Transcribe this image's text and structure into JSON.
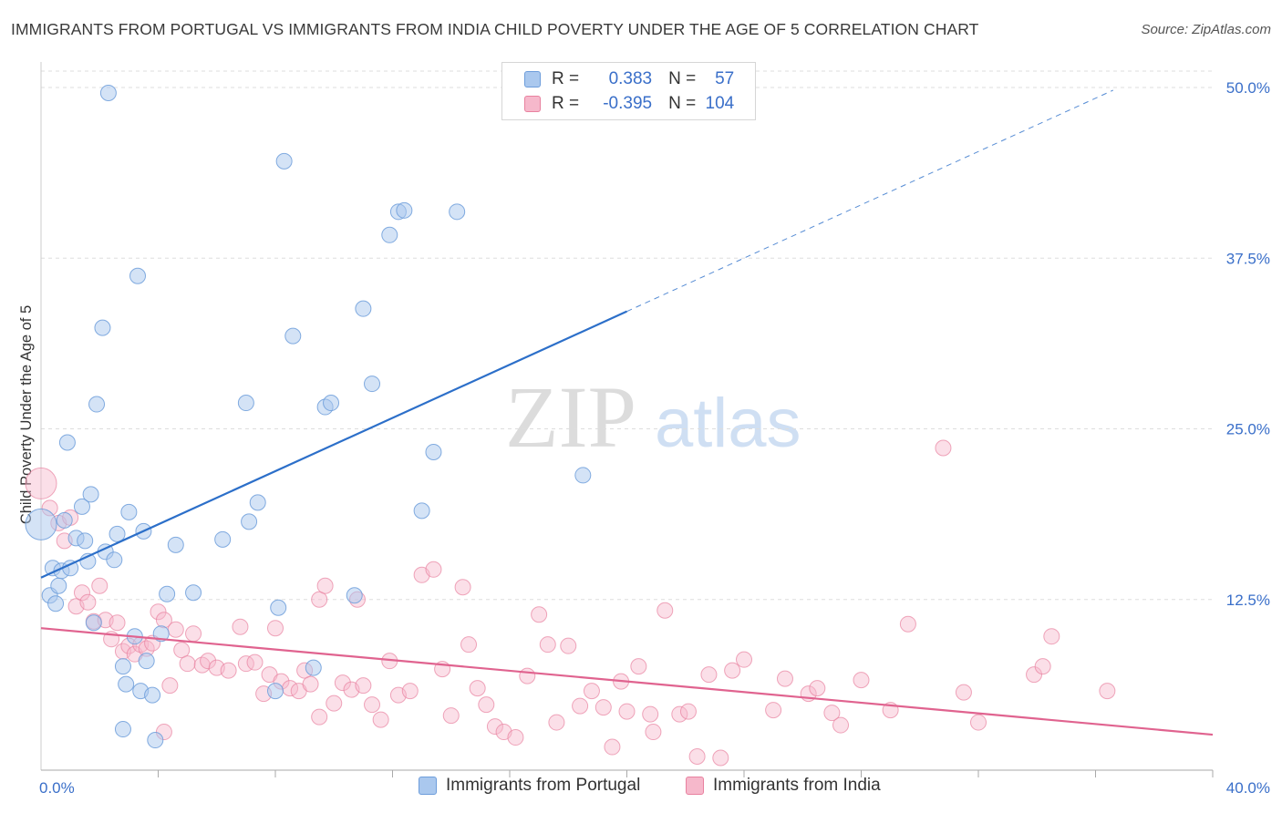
{
  "title": "IMMIGRANTS FROM PORTUGAL VS IMMIGRANTS FROM INDIA CHILD POVERTY UNDER THE AGE OF 5 CORRELATION CHART",
  "source": "Source: ZipAtlas.com",
  "watermark": {
    "zip": "ZIP",
    "atlas": "atlas"
  },
  "legend": {
    "r_label": "R =",
    "n_label": "N =",
    "portugal": {
      "r": "0.383",
      "n": "57"
    },
    "india": {
      "r": "-0.395",
      "n": "104"
    }
  },
  "colors": {
    "portugal_fill": "#aac8ee",
    "portugal_stroke": "#6d9ddb",
    "portugal_line": "#2c6fc9",
    "india_fill": "#f6b8cb",
    "india_stroke": "#e8819f",
    "india_line": "#e0638f",
    "axis_text": "#3a6fc9",
    "grid": "#dddddd"
  },
  "chart_data": {
    "type": "scatter",
    "title": "IMMIGRANTS FROM PORTUGAL VS IMMIGRANTS FROM INDIA CHILD POVERTY UNDER THE AGE OF 5 CORRELATION CHART",
    "xlabel": "",
    "ylabel": "Child Poverty Under the Age of 5",
    "xlim": [
      0,
      40
    ],
    "ylim": [
      0,
      50
    ],
    "x_tick_labels": [
      "0.0%",
      "40.0%"
    ],
    "y_ticks": [
      12.5,
      25.0,
      37.5,
      50.0
    ],
    "y_tick_labels": [
      "12.5%",
      "25.0%",
      "37.5%",
      "50.0%"
    ],
    "grid": true,
    "legend_position": "top-center",
    "series": [
      {
        "name": "Immigrants from Portugal",
        "trend": {
          "x0": 0.0,
          "y0": 14.1,
          "x1": 20.0,
          "y1": 33.6,
          "dashed_to_x": 36.6,
          "dashed_to_y": 49.8
        },
        "points": [
          [
            0.0,
            18.0
          ],
          [
            0.3,
            12.8
          ],
          [
            0.4,
            14.8
          ],
          [
            0.5,
            12.2
          ],
          [
            0.6,
            13.5
          ],
          [
            0.7,
            14.6
          ],
          [
            0.8,
            18.3
          ],
          [
            0.9,
            24.0
          ],
          [
            1.0,
            14.8
          ],
          [
            1.2,
            17.0
          ],
          [
            1.4,
            19.3
          ],
          [
            1.5,
            16.8
          ],
          [
            1.6,
            15.3
          ],
          [
            1.7,
            20.2
          ],
          [
            1.8,
            10.8
          ],
          [
            1.9,
            26.8
          ],
          [
            2.1,
            32.4
          ],
          [
            2.2,
            16.0
          ],
          [
            2.3,
            49.6
          ],
          [
            2.5,
            15.4
          ],
          [
            2.6,
            17.3
          ],
          [
            2.8,
            7.6
          ],
          [
            2.9,
            6.3
          ],
          [
            3.0,
            18.9
          ],
          [
            3.2,
            9.8
          ],
          [
            3.4,
            5.8
          ],
          [
            3.5,
            17.5
          ],
          [
            3.6,
            8.0
          ],
          [
            3.8,
            5.5
          ],
          [
            4.1,
            10.0
          ],
          [
            4.3,
            12.9
          ],
          [
            4.6,
            16.5
          ],
          [
            5.2,
            13.0
          ],
          [
            6.2,
            16.9
          ],
          [
            7.0,
            26.9
          ],
          [
            7.1,
            18.2
          ],
          [
            7.4,
            19.6
          ],
          [
            8.1,
            11.9
          ],
          [
            8.3,
            44.6
          ],
          [
            8.6,
            31.8
          ],
          [
            9.3,
            7.5
          ],
          [
            9.7,
            26.6
          ],
          [
            9.9,
            26.9
          ],
          [
            10.7,
            12.8
          ],
          [
            11.0,
            33.8
          ],
          [
            11.3,
            28.3
          ],
          [
            11.9,
            39.2
          ],
          [
            12.2,
            40.9
          ],
          [
            12.4,
            41.0
          ],
          [
            13.0,
            19.0
          ],
          [
            13.4,
            23.3
          ],
          [
            14.2,
            40.9
          ],
          [
            18.5,
            21.6
          ],
          [
            3.3,
            36.2
          ],
          [
            2.8,
            3.0
          ],
          [
            3.9,
            2.2
          ],
          [
            8.0,
            5.8
          ]
        ]
      },
      {
        "name": "Immigrants from India",
        "trend": {
          "x0": 0.0,
          "y0": 10.4,
          "x1": 40.0,
          "y1": 2.6
        },
        "points": [
          [
            0.0,
            21.0
          ],
          [
            0.3,
            19.2
          ],
          [
            0.6,
            18.1
          ],
          [
            0.8,
            16.8
          ],
          [
            1.0,
            18.5
          ],
          [
            1.2,
            12.0
          ],
          [
            1.4,
            13.0
          ],
          [
            1.6,
            12.3
          ],
          [
            1.8,
            10.9
          ],
          [
            2.0,
            13.5
          ],
          [
            2.2,
            11.0
          ],
          [
            2.4,
            9.6
          ],
          [
            2.6,
            10.8
          ],
          [
            2.8,
            8.7
          ],
          [
            3.0,
            9.1
          ],
          [
            3.2,
            8.5
          ],
          [
            3.4,
            9.2
          ],
          [
            3.6,
            8.9
          ],
          [
            3.8,
            9.3
          ],
          [
            4.0,
            11.6
          ],
          [
            4.2,
            11.0
          ],
          [
            4.4,
            6.2
          ],
          [
            4.6,
            10.3
          ],
          [
            4.8,
            8.8
          ],
          [
            5.0,
            7.8
          ],
          [
            5.2,
            10.0
          ],
          [
            5.5,
            7.7
          ],
          [
            5.7,
            8.0
          ],
          [
            6.0,
            7.5
          ],
          [
            6.4,
            7.3
          ],
          [
            6.8,
            10.5
          ],
          [
            7.0,
            7.8
          ],
          [
            7.3,
            7.9
          ],
          [
            7.6,
            5.6
          ],
          [
            7.8,
            7.0
          ],
          [
            8.0,
            10.4
          ],
          [
            8.2,
            6.5
          ],
          [
            8.5,
            6.0
          ],
          [
            8.8,
            5.8
          ],
          [
            9.0,
            7.3
          ],
          [
            9.2,
            6.3
          ],
          [
            9.5,
            12.5
          ],
          [
            9.7,
            13.5
          ],
          [
            10.0,
            4.9
          ],
          [
            10.3,
            6.4
          ],
          [
            10.6,
            5.9
          ],
          [
            10.8,
            12.5
          ],
          [
            11.0,
            6.2
          ],
          [
            11.3,
            4.8
          ],
          [
            11.6,
            3.7
          ],
          [
            11.9,
            8.0
          ],
          [
            12.2,
            5.5
          ],
          [
            12.6,
            5.8
          ],
          [
            13.0,
            14.3
          ],
          [
            13.4,
            14.7
          ],
          [
            13.7,
            7.4
          ],
          [
            14.0,
            4.0
          ],
          [
            14.4,
            13.4
          ],
          [
            14.6,
            9.2
          ],
          [
            14.9,
            6.0
          ],
          [
            15.2,
            4.8
          ],
          [
            15.5,
            3.2
          ],
          [
            15.8,
            2.8
          ],
          [
            16.2,
            2.4
          ],
          [
            16.6,
            6.9
          ],
          [
            17.0,
            11.4
          ],
          [
            17.3,
            9.2
          ],
          [
            17.6,
            3.5
          ],
          [
            18.0,
            9.1
          ],
          [
            18.4,
            4.7
          ],
          [
            18.8,
            5.8
          ],
          [
            19.2,
            4.6
          ],
          [
            19.5,
            1.7
          ],
          [
            19.8,
            6.5
          ],
          [
            20.0,
            4.3
          ],
          [
            20.4,
            7.6
          ],
          [
            20.8,
            4.1
          ],
          [
            21.3,
            11.7
          ],
          [
            21.8,
            4.1
          ],
          [
            22.1,
            4.3
          ],
          [
            22.4,
            1.0
          ],
          [
            20.9,
            2.8
          ],
          [
            22.8,
            7.0
          ],
          [
            23.2,
            0.9
          ],
          [
            23.6,
            7.3
          ],
          [
            24.0,
            8.1
          ],
          [
            25.0,
            4.4
          ],
          [
            25.4,
            6.7
          ],
          [
            26.2,
            5.6
          ],
          [
            26.5,
            6.0
          ],
          [
            27.0,
            4.2
          ],
          [
            27.3,
            3.3
          ],
          [
            28.0,
            6.6
          ],
          [
            29.0,
            4.4
          ],
          [
            29.6,
            10.7
          ],
          [
            30.8,
            23.6
          ],
          [
            31.5,
            5.7
          ],
          [
            32.0,
            3.5
          ],
          [
            33.9,
            7.0
          ],
          [
            34.2,
            7.6
          ],
          [
            34.5,
            9.8
          ],
          [
            36.4,
            5.8
          ],
          [
            4.2,
            2.8
          ],
          [
            9.5,
            3.9
          ]
        ]
      }
    ]
  },
  "bottom_legend": {
    "portugal": "Immigrants from Portugal",
    "india": "Immigrants from India"
  }
}
